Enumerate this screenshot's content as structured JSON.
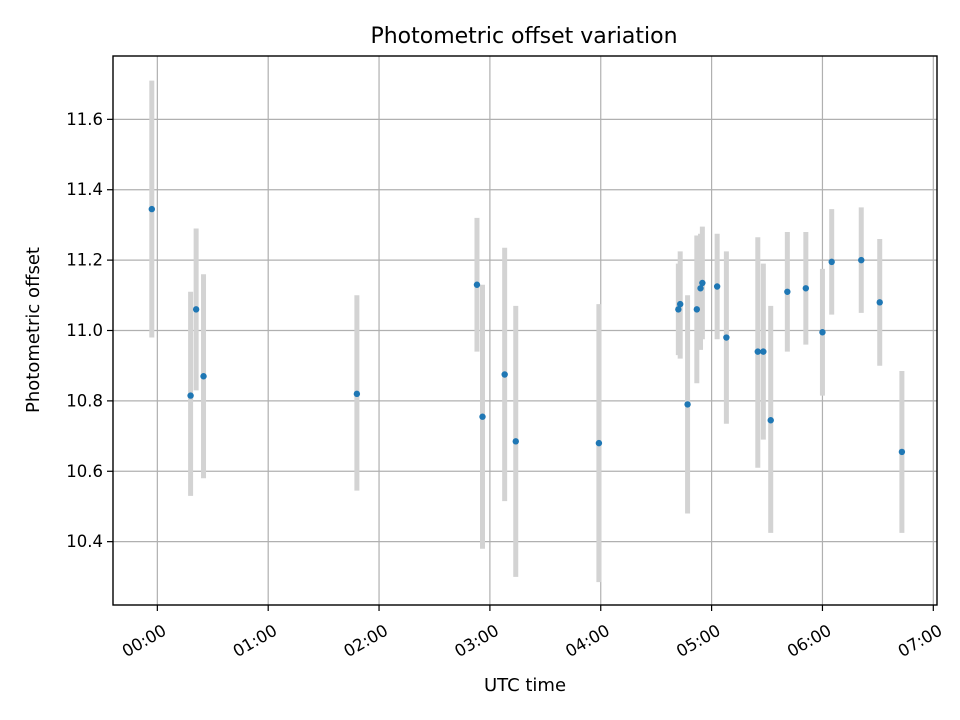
{
  "chart_data": {
    "type": "scatter",
    "title": "Photometric offset variation",
    "xlabel": "UTC time",
    "ylabel": "Photometric offset",
    "x_tick_labels": [
      "00:00",
      "01:00",
      "02:00",
      "03:00",
      "04:00",
      "05:00",
      "06:00",
      "07:00"
    ],
    "y_tick_labels": [
      "10.4",
      "10.6",
      "10.8",
      "11.0",
      "11.2",
      "11.4",
      "11.6"
    ],
    "xlim": [
      "23:36",
      "07:02"
    ],
    "ylim": [
      10.22,
      11.78
    ],
    "grid": true,
    "legend": false,
    "point_color": "#1f77b4",
    "errorbar_color": "#d3d3d3",
    "points": [
      {
        "time": "23:57",
        "y": 11.345,
        "ylow": 10.98,
        "yhigh": 11.71
      },
      {
        "time": "00:18",
        "y": 10.815,
        "ylow": 10.53,
        "yhigh": 11.11
      },
      {
        "time": "00:21",
        "y": 11.06,
        "ylow": 10.83,
        "yhigh": 11.29
      },
      {
        "time": "00:25",
        "y": 10.87,
        "ylow": 10.58,
        "yhigh": 11.16
      },
      {
        "time": "01:48",
        "y": 10.82,
        "ylow": 10.545,
        "yhigh": 11.1
      },
      {
        "time": "02:53",
        "y": 11.13,
        "ylow": 10.94,
        "yhigh": 11.32
      },
      {
        "time": "02:56",
        "y": 10.755,
        "ylow": 10.38,
        "yhigh": 11.13
      },
      {
        "time": "03:08",
        "y": 10.875,
        "ylow": 10.515,
        "yhigh": 11.235
      },
      {
        "time": "03:14",
        "y": 10.685,
        "ylow": 10.3,
        "yhigh": 11.07
      },
      {
        "time": "03:59",
        "y": 10.68,
        "ylow": 10.285,
        "yhigh": 11.075
      },
      {
        "time": "04:42",
        "y": 11.06,
        "ylow": 10.93,
        "yhigh": 11.19
      },
      {
        "time": "04:43",
        "y": 11.075,
        "ylow": 10.92,
        "yhigh": 11.225
      },
      {
        "time": "04:47",
        "y": 10.79,
        "ylow": 10.48,
        "yhigh": 11.1
      },
      {
        "time": "04:52",
        "y": 11.06,
        "ylow": 10.85,
        "yhigh": 11.27
      },
      {
        "time": "04:54",
        "y": 11.12,
        "ylow": 10.945,
        "yhigh": 11.275
      },
      {
        "time": "04:55",
        "y": 11.135,
        "ylow": 10.975,
        "yhigh": 11.295
      },
      {
        "time": "05:03",
        "y": 11.125,
        "ylow": 10.975,
        "yhigh": 11.275
      },
      {
        "time": "05:08",
        "y": 10.98,
        "ylow": 10.735,
        "yhigh": 11.225
      },
      {
        "time": "05:25",
        "y": 10.94,
        "ylow": 10.61,
        "yhigh": 11.265
      },
      {
        "time": "05:28",
        "y": 10.94,
        "ylow": 10.69,
        "yhigh": 11.19
      },
      {
        "time": "05:32",
        "y": 10.745,
        "ylow": 10.425,
        "yhigh": 11.07
      },
      {
        "time": "05:41",
        "y": 11.11,
        "ylow": 10.94,
        "yhigh": 11.28
      },
      {
        "time": "05:51",
        "y": 11.12,
        "ylow": 10.96,
        "yhigh": 11.28
      },
      {
        "time": "06:00",
        "y": 10.995,
        "ylow": 10.815,
        "yhigh": 11.175
      },
      {
        "time": "06:05",
        "y": 11.195,
        "ylow": 11.045,
        "yhigh": 11.345
      },
      {
        "time": "06:21",
        "y": 11.2,
        "ylow": 11.05,
        "yhigh": 11.35
      },
      {
        "time": "06:31",
        "y": 11.08,
        "ylow": 10.9,
        "yhigh": 11.26
      },
      {
        "time": "06:43",
        "y": 10.655,
        "ylow": 10.425,
        "yhigh": 10.885
      }
    ]
  }
}
